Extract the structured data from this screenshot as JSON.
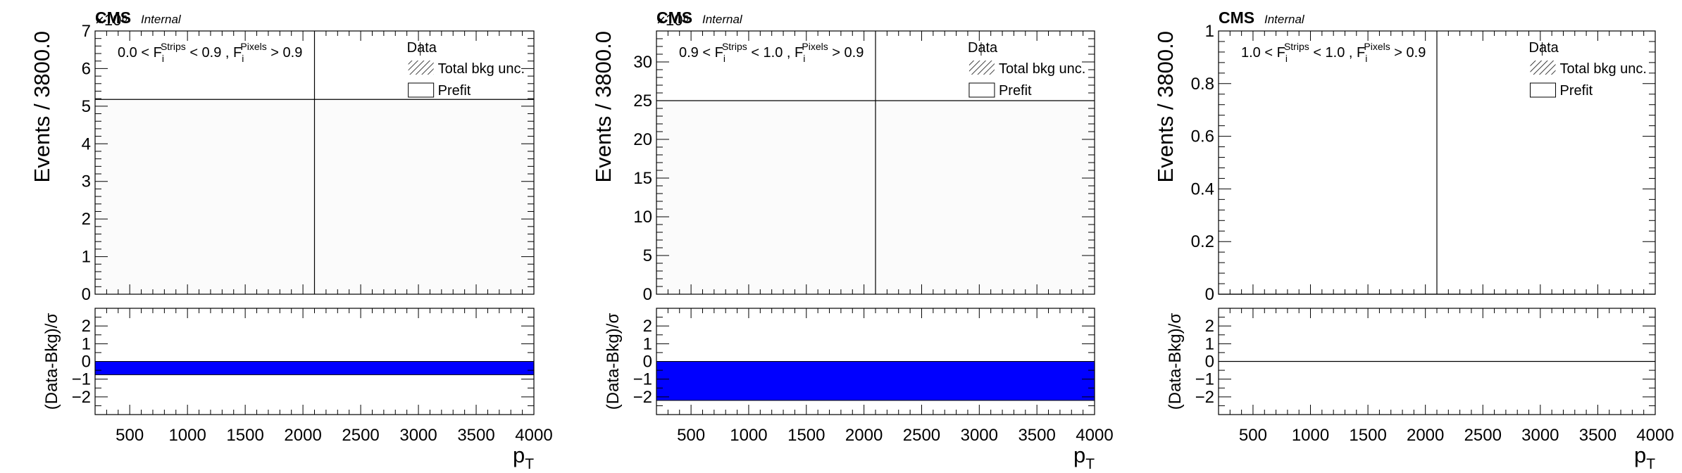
{
  "chart_data": [
    {
      "type": "bar",
      "label_prefix": "CMS",
      "label_suffix": "Internal",
      "exponent": "×10⁶",
      "selection_text": "0.0 < F_i^{Strips} < 0.9 , F_i^{Pixels} > 0.9",
      "ylabel": "Events / 3800.0",
      "xlabel": "p_T",
      "ylim": [
        0,
        7
      ],
      "yticks": [
        "0",
        "1",
        "2",
        "3",
        "4",
        "5",
        "6",
        "7"
      ],
      "xlim": [
        200,
        4000
      ],
      "xticks": [
        "500",
        "1000",
        "1500",
        "2000",
        "2500",
        "3000",
        "3500",
        "4000"
      ],
      "series": [
        {
          "name": "Data",
          "x": [
            2100
          ],
          "values": [
            7
          ]
        },
        {
          "name": "Prefit",
          "bin": [
            200,
            4000
          ],
          "values": [
            5.18
          ]
        }
      ],
      "legend": [
        "Data",
        "Total bkg unc.",
        "Prefit"
      ],
      "ratio": {
        "ylabel": "(Data-Bkg)/σ",
        "ylim": [
          -3,
          3
        ],
        "yticks": [
          "-2",
          "-1",
          "0",
          "1",
          "2"
        ],
        "band": [
          -0.75,
          0
        ],
        "color": "#0000ff"
      }
    },
    {
      "type": "bar",
      "label_prefix": "CMS",
      "label_suffix": "Internal",
      "exponent": "×10⁶",
      "selection_text": "0.9 < F_i^{Strips} < 1.0 , F_i^{Pixels} > 0.9",
      "ylabel": "Events / 3800.0",
      "xlabel": "p_T",
      "ylim": [
        0,
        34
      ],
      "yticks": [
        "0",
        "5",
        "10",
        "15",
        "20",
        "25",
        "30"
      ],
      "xlim": [
        200,
        4000
      ],
      "xticks": [
        "500",
        "1000",
        "1500",
        "2000",
        "2500",
        "3000",
        "3500",
        "4000"
      ],
      "series": [
        {
          "name": "Data",
          "x": [
            2100
          ],
          "values": [
            34
          ]
        },
        {
          "name": "Prefit",
          "bin": [
            200,
            4000
          ],
          "values": [
            25
          ]
        }
      ],
      "legend": [
        "Data",
        "Total bkg unc.",
        "Prefit"
      ],
      "ratio": {
        "ylabel": "(Data-Bkg)/σ",
        "ylim": [
          -3,
          3
        ],
        "yticks": [
          "-2",
          "-1",
          "0",
          "1",
          "2"
        ],
        "band": [
          -2.2,
          0
        ],
        "color": "#0000ff"
      }
    },
    {
      "type": "bar",
      "label_prefix": "CMS",
      "label_suffix": "Internal",
      "exponent": "",
      "selection_text": "1.0 < F_i^{Strips} < 1.0 , F_i^{Pixels} > 0.9",
      "ylabel": "Events / 3800.0",
      "xlabel": "p_T",
      "ylim": [
        0,
        1
      ],
      "yticks": [
        "0",
        "0.2",
        "0.4",
        "0.6",
        "0.8",
        "1"
      ],
      "xlim": [
        200,
        4000
      ],
      "xticks": [
        "500",
        "1000",
        "1500",
        "2000",
        "2500",
        "3000",
        "3500",
        "4000"
      ],
      "series": [
        {
          "name": "Data",
          "x": [
            2100
          ],
          "values": [
            1
          ]
        },
        {
          "name": "Prefit",
          "bin": [
            200,
            4000
          ],
          "values": [
            0
          ]
        }
      ],
      "legend": [
        "Data",
        "Total bkg unc.",
        "Prefit"
      ],
      "ratio": {
        "ylabel": "(Data-Bkg)/σ",
        "ylim": [
          -3,
          3
        ],
        "yticks": [
          "-2",
          "-1",
          "0",
          "1",
          "2"
        ],
        "band": [
          0,
          0
        ],
        "color": "#0000ff"
      }
    }
  ]
}
